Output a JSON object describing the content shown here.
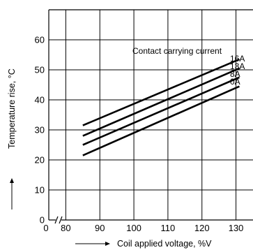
{
  "chart_data": {
    "type": "line",
    "title": "",
    "xlabel": "Coil applied voltage, %V",
    "ylabel": "Temperature rise, °C",
    "xlim": [
      75,
      135
    ],
    "ylim": [
      0,
      70
    ],
    "x_ticks": [
      0,
      80,
      90,
      100,
      110,
      120,
      130
    ],
    "x_tick_labels": [
      "0",
      "80",
      "90",
      "100",
      "110",
      "120",
      "130"
    ],
    "y_ticks": [
      0,
      10,
      20,
      30,
      40,
      50,
      60
    ],
    "y_tick_labels": [
      "0",
      "10",
      "20",
      "30",
      "40",
      "50",
      "60"
    ],
    "grid": true,
    "axis_break": "x",
    "legend_title": "Contact carrying current",
    "series": [
      {
        "name": "16A",
        "x": [
          85,
          131
        ],
        "y": [
          31.5,
          53.5
        ]
      },
      {
        "name": "13A",
        "x": [
          85,
          131
        ],
        "y": [
          28.0,
          50.5
        ]
      },
      {
        "name": "8A",
        "x": [
          85,
          131
        ],
        "y": [
          25.0,
          47.5
        ]
      },
      {
        "name": "0A",
        "x": [
          85,
          131
        ],
        "y": [
          21.5,
          44.5
        ]
      }
    ]
  }
}
